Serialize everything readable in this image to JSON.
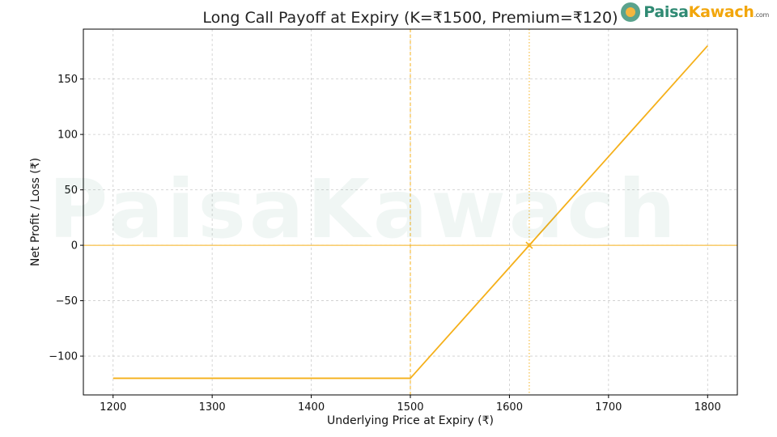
{
  "chart_data": {
    "type": "line",
    "title": "Long Call Payoff at Expiry (K=₹1500, Premium=₹120)",
    "xlabel": "Underlying Price at Expiry (₹)",
    "ylabel": "Net Profit / Loss (₹)",
    "xlim": [
      1170,
      1830
    ],
    "ylim": [
      -135,
      195
    ],
    "xticks": [
      1200,
      1300,
      1400,
      1500,
      1600,
      1700,
      1800
    ],
    "yticks": [
      -100,
      -50,
      0,
      50,
      100,
      150
    ],
    "ytick_labels": [
      "−100",
      "−50",
      "0",
      "50",
      "100",
      "150"
    ],
    "grid": true,
    "series": [
      {
        "x": [
          1200,
          1500,
          1800
        ],
        "y": [
          -120,
          -120,
          180
        ],
        "color": "#f5b01a"
      }
    ],
    "reference_lines": [
      {
        "orientation": "horizontal",
        "value": 0,
        "color": "#f5b01a"
      },
      {
        "orientation": "vertical",
        "value": 1500,
        "color": "#f5b01a",
        "style": "dashed"
      },
      {
        "orientation": "vertical",
        "value": 1620,
        "color": "#f5b01a",
        "style": "dotted"
      }
    ],
    "markers": [
      {
        "x": 1620,
        "y": 0,
        "symbol": "x",
        "color": "#f5b01a"
      }
    ]
  },
  "logo": {
    "brand_part1": "Paisa",
    "brand_part2": "Kawach",
    "suffix": ".com"
  },
  "watermark": {
    "text": "PaisaKawach"
  }
}
